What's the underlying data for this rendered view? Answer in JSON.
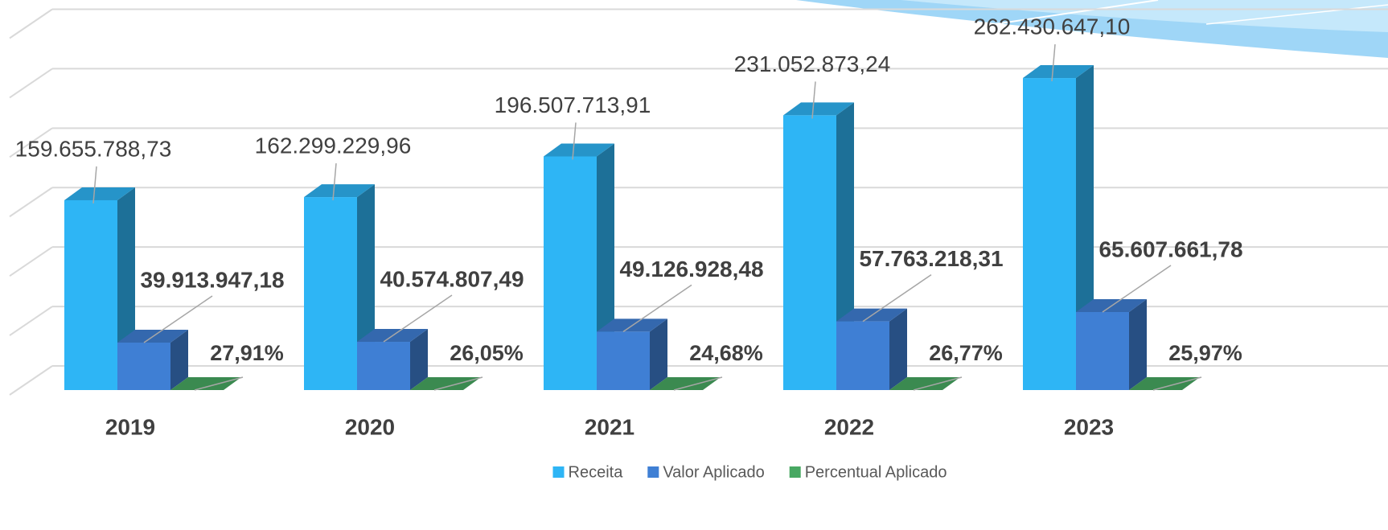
{
  "chart_data": {
    "type": "bar3d",
    "categories": [
      "2019",
      "2020",
      "2021",
      "2022",
      "2023"
    ],
    "series": [
      {
        "name": "Receita",
        "color": "#2eb5f5",
        "values": [
          159655788.73,
          162299229.96,
          196507713.91,
          231052873.24,
          262430647.1
        ],
        "value_labels": [
          "159.655.788,73",
          "162.299.229,96",
          "196.507.713,91",
          "231.052.873,24",
          "262.430.647,10"
        ]
      },
      {
        "name": "Valor Aplicado",
        "color": "#3f7fd4",
        "values": [
          39913947.18,
          40574807.49,
          49126928.48,
          57763218.31,
          65607661.78
        ],
        "value_labels": [
          "39.913.947,18",
          "40.574.807,49",
          "49.126.928,48",
          "57.763.218,31",
          "65.607.661,78"
        ]
      },
      {
        "name": "Percentual Aplicado",
        "color": "#48a862",
        "values": [
          27.91,
          26.05,
          24.68,
          26.77,
          25.97
        ],
        "value_labels": [
          "27,91%",
          "26,05%",
          "24,68%",
          "26,77%",
          "25,97%"
        ]
      }
    ],
    "ylim": [
      0,
      300000000
    ],
    "yticks": [
      0,
      50000000,
      100000000,
      150000000,
      200000000,
      250000000,
      300000000
    ],
    "grid": true,
    "legend": "bottom"
  }
}
